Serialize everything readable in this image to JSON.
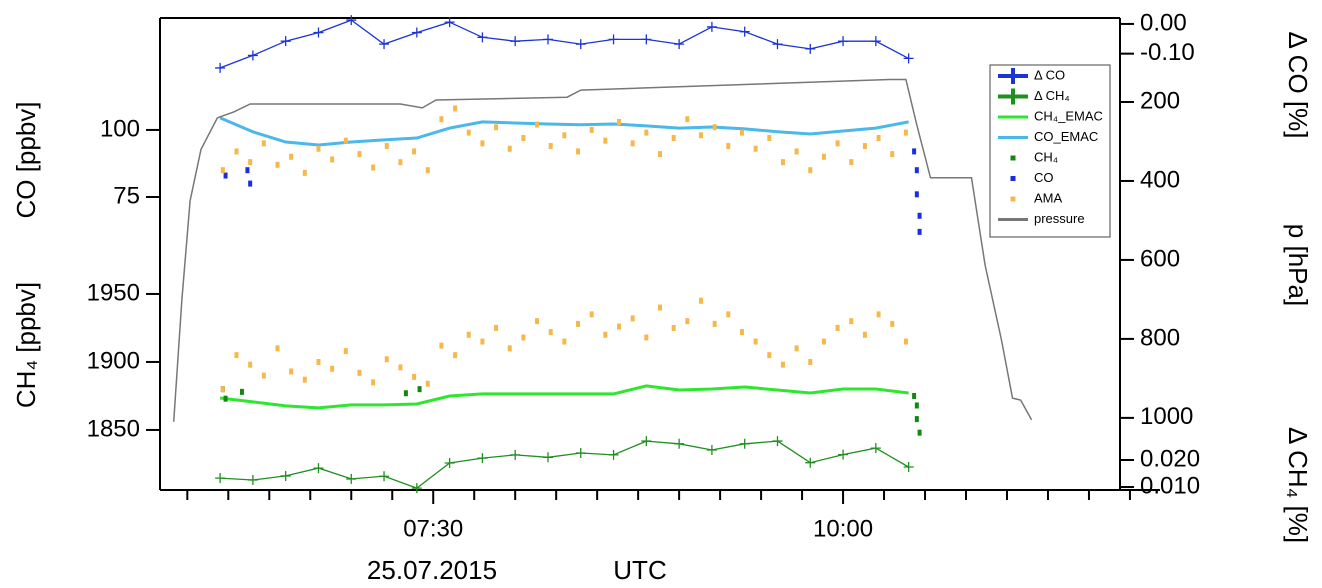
{
  "x_axis": {
    "xlim": [
      "05:50",
      "11:56"
    ],
    "xticks": [
      "07:30",
      "10:00"
    ],
    "xminorticks": [
      "06:00",
      "06:15",
      "06:30",
      "06:45",
      "07:00",
      "07:15",
      "07:45",
      "08:00",
      "08:15",
      "08:30",
      "08:45",
      "09:00",
      "09:15",
      "09:30",
      "09:45",
      "10:15",
      "10:30",
      "10:45",
      "11:00",
      "11:15",
      "11:30",
      "11:45"
    ],
    "date": "25.07.2015",
    "xlabel": "UTC"
  },
  "legend": {
    "corner": "upper right"
  },
  "chart_data": [
    {
      "type": "line",
      "ylabel": "Δ CO [%]",
      "ylim": [
        -0.155,
        0.02
      ],
      "yticks": [
        {
          "value": 0,
          "label": "0.00"
        },
        {
          "value": -0.1,
          "label": "-0.10"
        }
      ],
      "series": [
        {
          "name": "Δ CO",
          "type": "line",
          "marker": "plus",
          "color": "#1c34d4",
          "x": [
            "06:12",
            "06:24",
            "06:36",
            "06:48",
            "07:00",
            "07:12",
            "07:24",
            "07:36",
            "07:48",
            "08:00",
            "08:12",
            "08:24",
            "08:36",
            "08:48",
            "09:00",
            "09:12",
            "09:24",
            "09:36",
            "09:48",
            "10:00",
            "10:12",
            "10:24"
          ],
          "values": [
            -0.148,
            -0.106,
            -0.058,
            -0.029,
            0.013,
            -0.068,
            -0.029,
            0.006,
            -0.045,
            -0.058,
            -0.052,
            -0.068,
            -0.052,
            -0.052,
            -0.068,
            -0.01,
            -0.026,
            -0.068,
            -0.084,
            -0.058,
            -0.058,
            -0.116
          ]
        }
      ]
    },
    {
      "type": "combo",
      "ylabel": "CO [ppbv]",
      "ylim": [
        54.5,
        121.6
      ],
      "yticks": [
        75,
        100
      ],
      "series": [
        {
          "name": "CO_EMAC",
          "type": "line",
          "color": "#4ab8e8",
          "x": [
            "06:12",
            "06:24",
            "06:36",
            "06:48",
            "07:00",
            "07:12",
            "07:24",
            "07:36",
            "07:48",
            "08:00",
            "08:12",
            "08:24",
            "08:36",
            "08:48",
            "09:00",
            "09:12",
            "09:24",
            "09:36",
            "09:48",
            "10:00",
            "10:12",
            "10:24"
          ],
          "values": [
            104.5,
            99.3,
            95.5,
            94.4,
            95.5,
            96.3,
            97.0,
            100.7,
            103.0,
            102.6,
            102.2,
            101.9,
            102.2,
            101.5,
            100.7,
            101.1,
            100.4,
            99.3,
            98.5,
            99.6,
            100.7,
            103.0
          ]
        },
        {
          "name": "CO",
          "type": "scatter",
          "color": "#1a2ee0",
          "x": [
            "06:14",
            "06:22",
            "06:23",
            "10:26",
            "10:27",
            "10:27",
            "10:28",
            "10:28"
          ],
          "values": [
            83,
            85,
            80,
            92,
            85,
            76,
            68,
            62
          ]
        },
        {
          "name": "AMA",
          "type": "scatter",
          "color": "#f7b84a",
          "x": [
            "06:13",
            "06:18",
            "06:23",
            "06:28",
            "06:33",
            "06:38",
            "06:43",
            "06:48",
            "06:53",
            "06:58",
            "07:03",
            "07:08",
            "07:13",
            "07:18",
            "07:23",
            "07:28",
            "07:33",
            "07:38",
            "07:43",
            "07:48",
            "07:53",
            "07:58",
            "08:03",
            "08:08",
            "08:13",
            "08:18",
            "08:23",
            "08:28",
            "08:33",
            "08:38",
            "08:43",
            "08:48",
            "08:53",
            "08:58",
            "09:03",
            "09:08",
            "09:13",
            "09:18",
            "09:23",
            "09:28",
            "09:33",
            "09:38",
            "09:43",
            "09:48",
            "09:53",
            "09:58",
            "10:03",
            "10:08",
            "10:13",
            "10:18",
            "10:23"
          ],
          "values": [
            85,
            92,
            88,
            95,
            87,
            90,
            84,
            93,
            89,
            96,
            91,
            86,
            94,
            88,
            92,
            85,
            104,
            108,
            99,
            95,
            101,
            93,
            97,
            102,
            94,
            98,
            92,
            100,
            96,
            103,
            95,
            99,
            91,
            97,
            104,
            98,
            101,
            94,
            99,
            93,
            97,
            88,
            92,
            85,
            90,
            95,
            88,
            94,
            97,
            91,
            99
          ]
        }
      ]
    },
    {
      "type": "combo",
      "ylabel": "CH₄ [ppbv]",
      "ylim": [
        1848.5,
        1973.5
      ],
      "yticks": [
        1850,
        1900,
        1950
      ],
      "series": [
        {
          "name": "CH₄_EMAC",
          "type": "line",
          "color": "#2ee62e",
          "x": [
            "06:12",
            "06:24",
            "06:36",
            "06:48",
            "07:00",
            "07:12",
            "07:24",
            "07:36",
            "07:48",
            "08:00",
            "08:12",
            "08:24",
            "08:36",
            "08:48",
            "09:00",
            "09:12",
            "09:24",
            "09:36",
            "09:48",
            "10:00",
            "10:12",
            "10:24"
          ],
          "values": [
            1873.5,
            1870.6,
            1867.7,
            1866.2,
            1868.4,
            1868.4,
            1869.1,
            1875.0,
            1876.5,
            1876.5,
            1876.5,
            1876.5,
            1876.5,
            1882.4,
            1879.4,
            1880.1,
            1881.6,
            1879.4,
            1877.2,
            1880.1,
            1880.1,
            1877.2
          ]
        },
        {
          "name": "CH₄",
          "type": "scatter",
          "color": "#118811",
          "x": [
            "06:13",
            "06:14",
            "06:20",
            "07:20",
            "07:25",
            "10:26",
            "10:27",
            "10:27",
            "10:28"
          ],
          "values": [
            1880,
            1873,
            1878,
            1877,
            1880,
            1875,
            1868,
            1858,
            1848
          ]
        },
        {
          "name": "AMA",
          "type": "scatter",
          "color": "#f7b84a",
          "x": [
            "06:13",
            "06:18",
            "06:23",
            "06:28",
            "06:33",
            "06:38",
            "06:43",
            "06:48",
            "06:53",
            "06:58",
            "07:03",
            "07:08",
            "07:13",
            "07:18",
            "07:23",
            "07:28",
            "07:33",
            "07:38",
            "07:43",
            "07:48",
            "07:53",
            "07:58",
            "08:03",
            "08:08",
            "08:13",
            "08:18",
            "08:23",
            "08:28",
            "08:33",
            "08:38",
            "08:43",
            "08:48",
            "08:53",
            "08:58",
            "09:03",
            "09:08",
            "09:13",
            "09:18",
            "09:23",
            "09:28",
            "09:33",
            "09:38",
            "09:43",
            "09:48",
            "09:53",
            "09:58",
            "10:03",
            "10:08",
            "10:13",
            "10:18",
            "10:23"
          ],
          "values": [
            1880,
            1905,
            1898,
            1890,
            1910,
            1893,
            1887,
            1900,
            1895,
            1908,
            1892,
            1885,
            1902,
            1896,
            1889,
            1884,
            1912,
            1905,
            1920,
            1915,
            1925,
            1910,
            1918,
            1930,
            1922,
            1915,
            1928,
            1935,
            1920,
            1926,
            1932,
            1918,
            1940,
            1925,
            1930,
            1945,
            1928,
            1935,
            1922,
            1915,
            1905,
            1898,
            1910,
            1900,
            1915,
            1925,
            1930,
            1920,
            1935,
            1928,
            1915
          ]
        }
      ]
    },
    {
      "type": "line",
      "ylabel": "Δ CH₄ [%]",
      "ylim": [
        0.0089,
        0.0274
      ],
      "yticks": [
        {
          "value": 0.02,
          "label": "0.020"
        },
        {
          "value": 0.01,
          "label": "0.010"
        }
      ],
      "series": [
        {
          "name": "Δ CH₄",
          "type": "line",
          "marker": "plus",
          "color": "#1f8f1f",
          "x": [
            "06:12",
            "06:24",
            "06:36",
            "06:48",
            "07:00",
            "07:12",
            "07:24",
            "07:36",
            "07:48",
            "08:00",
            "08:12",
            "08:24",
            "08:36",
            "08:48",
            "09:00",
            "09:12",
            "09:24",
            "09:36",
            "09:48",
            "10:00",
            "10:12",
            "10:24"
          ],
          "values": [
            0.0133,
            0.0126,
            0.0141,
            0.017,
            0.013,
            0.014,
            0.0096,
            0.0189,
            0.0207,
            0.0219,
            0.021,
            0.0226,
            0.0219,
            0.027,
            0.026,
            0.0237,
            0.026,
            0.027,
            0.019,
            0.022,
            0.0244,
            0.0174
          ]
        }
      ]
    },
    {
      "type": "line",
      "ylabel": "p [hPa]",
      "y2lim": [
        1056,
        119
      ],
      "y2ticks": [
        200,
        400,
        600,
        800,
        1000
      ],
      "series": [
        {
          "name": "pressure",
          "type": "line",
          "axis": "y2",
          "color": "#777777",
          "x": [
            "05:55",
            "05:58",
            "06:01",
            "06:05",
            "06:11",
            "06:17",
            "06:23",
            "07:18",
            "07:26",
            "07:31",
            "08:19",
            "08:24",
            "10:17",
            "10:23",
            "10:27",
            "10:32",
            "10:47",
            "10:52",
            "10:58",
            "11:02",
            "11:05",
            "11:09"
          ],
          "values": [
            1010,
            700,
            450,
            320,
            240,
            225,
            205,
            205,
            215,
            195,
            188,
            170,
            143,
            143,
            258,
            392,
            392,
            613,
            803,
            950,
            955,
            1005
          ]
        }
      ]
    }
  ]
}
